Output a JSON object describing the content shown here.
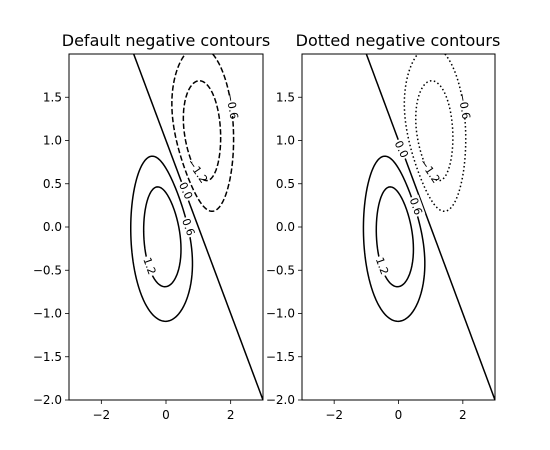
{
  "chart_data": [
    {
      "type": "contour",
      "title": "Default negative contours",
      "xlim": [
        -3,
        3
      ],
      "ylim": [
        -2,
        2
      ],
      "xticks": [
        -2,
        0,
        2
      ],
      "yticks": [
        -2.0,
        -1.5,
        -1.0,
        -0.5,
        0.0,
        0.5,
        1.0,
        1.5
      ],
      "xtick_labels": [
        "−2",
        "0",
        "2"
      ],
      "ytick_labels": [
        "−2.0",
        "−1.5",
        "−1.0",
        "−0.5",
        "0.0",
        "0.5",
        "1.0",
        "1.5"
      ],
      "contour_levels": [
        -1.2,
        -0.6,
        0.0,
        0.6,
        1.2
      ],
      "negative_linestyle": "dashed",
      "contour_labels": [
        "−0.6",
        "−1.2",
        "0.0",
        "0.6",
        "1.2"
      ]
    },
    {
      "type": "contour",
      "title": "Dotted negative contours",
      "xlim": [
        -3,
        3
      ],
      "ylim": [
        -2,
        2
      ],
      "xticks": [
        -2,
        0,
        2
      ],
      "yticks": [
        -2.0,
        -1.5,
        -1.0,
        -0.5,
        0.0,
        0.5,
        1.0,
        1.5
      ],
      "xtick_labels": [
        "−2",
        "0",
        "2"
      ],
      "ytick_labels": [
        "−2.0",
        "−1.5",
        "−1.0",
        "−0.5",
        "0.0",
        "0.5",
        "1.0",
        "1.5"
      ],
      "contour_levels": [
        -1.2,
        -0.6,
        0.0,
        0.6,
        1.2
      ],
      "negative_linestyle": "dotted",
      "contour_labels": [
        "−0.6",
        "−1.2",
        "0.0",
        "0.6",
        "1.2"
      ]
    }
  ]
}
